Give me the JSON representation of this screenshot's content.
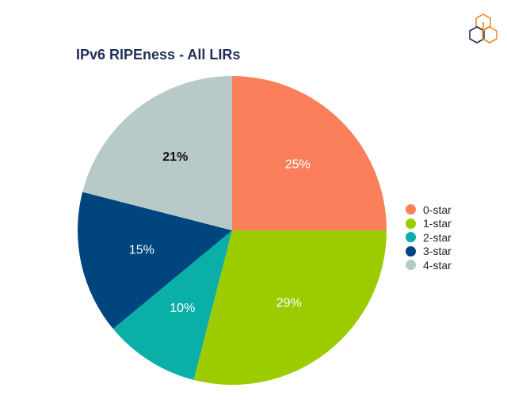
{
  "chart_data": {
    "type": "pie",
    "title": "IPv6 RIPEness - All LIRs",
    "categories": [
      "0-star",
      "1-star",
      "2-star",
      "3-star",
      "4-star"
    ],
    "values": [
      25,
      29,
      10,
      15,
      21
    ],
    "labels": [
      "25%",
      "29%",
      "10%",
      "15%",
      "21%"
    ],
    "colors": [
      "#fa7f5a",
      "#9ccb00",
      "#0aafa7",
      "#00457d",
      "#b7c9c9"
    ],
    "label_colors": [
      "#ffffff",
      "#ffffff",
      "#ffffff",
      "#ffffff",
      "#111111"
    ],
    "label_bold": [
      false,
      false,
      false,
      false,
      true
    ],
    "start": "12 o'clock",
    "direction": "clockwise",
    "legend": "right"
  },
  "logo": {
    "icon": "ripe-ncc-hexagon-cube-icon",
    "colors": [
      "#f18b2d",
      "#1f2f59"
    ]
  }
}
